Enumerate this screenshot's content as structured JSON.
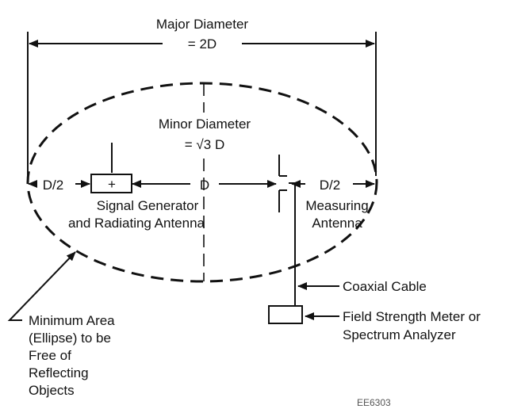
{
  "labels": {
    "major_diameter": "Major Diameter",
    "major_value": "= 2D",
    "minor_diameter": "Minor Diameter",
    "minor_value_prefix": "= ",
    "minor_value_sqrt": "√3",
    "minor_value_suffix": " D",
    "half_left": "D/2",
    "center_distance": "D",
    "half_right": "D/2",
    "signal_generator_line1": "Signal Generator",
    "signal_generator_line2": "and Radiating Antenna",
    "measuring_line1": "Measuring",
    "measuring_line2": "Antenna",
    "coaxial_cable": "Coaxial Cable",
    "meter_line1": "Field Strength Meter or",
    "meter_line2": "Spectrum Analyzer",
    "area_line1": "Minimum Area",
    "area_line2": "(Ellipse) to be",
    "area_line3": "Free of",
    "area_line4": "Reflecting",
    "area_line5": "Objects",
    "figure_code": "EE6303",
    "generator_plus": "+"
  }
}
